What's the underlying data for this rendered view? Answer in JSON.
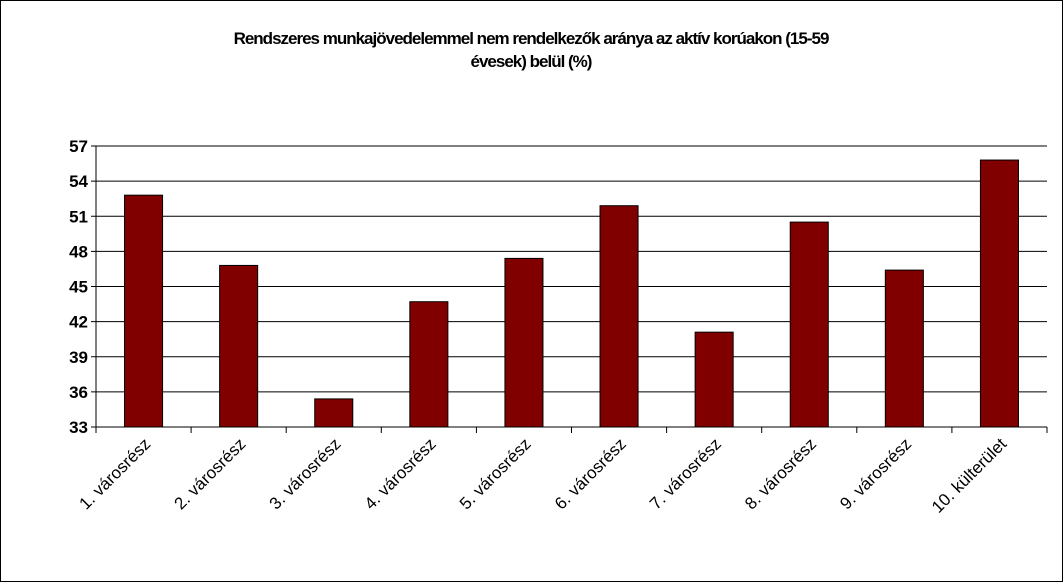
{
  "chart_data": {
    "type": "bar",
    "title_line1": "Rendszeres munkajövedelemmel nem rendelkezők aránya az aktív korúakon (15-59",
    "title_line2": "évesek) belül (%)",
    "categories": [
      "1. városrész",
      "2. városrész",
      "3. városrész",
      "4. városrész",
      "5. városrész",
      "6. városrész",
      "7. városrész",
      "8. városrész",
      "9. városrész",
      "10. külterület"
    ],
    "values": [
      52.8,
      46.8,
      35.4,
      43.7,
      47.4,
      51.9,
      41.1,
      50.5,
      46.4,
      55.8
    ],
    "ylim": [
      33,
      57
    ],
    "yticks": [
      33,
      36,
      39,
      42,
      45,
      48,
      51,
      54,
      57
    ],
    "xlabel": "",
    "ylabel": "",
    "grid": true,
    "bar_color": "#800000"
  }
}
